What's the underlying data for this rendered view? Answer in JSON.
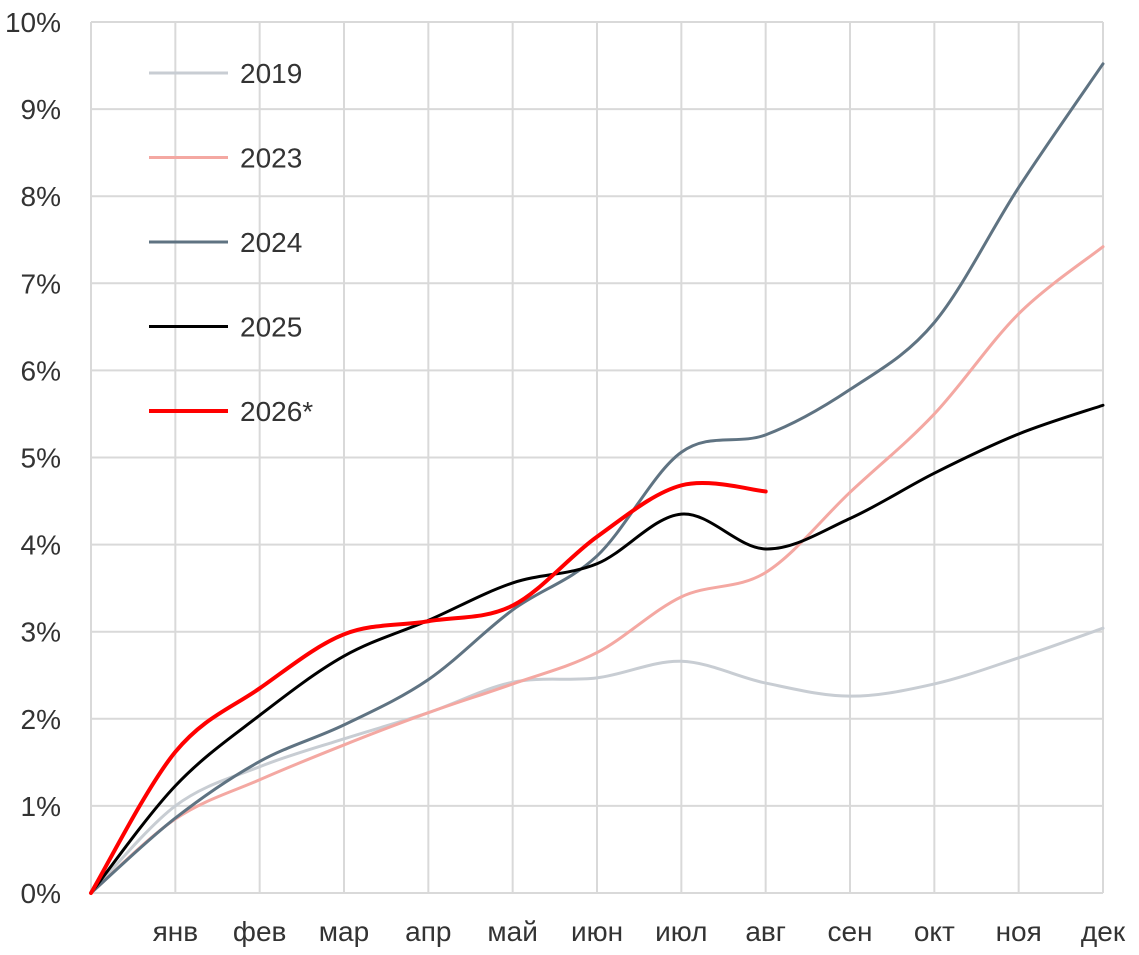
{
  "chart_data": {
    "type": "line",
    "title": "",
    "xlabel": "",
    "ylabel": "",
    "categories": [
      "",
      "янв",
      "фев",
      "мар",
      "апр",
      "май",
      "июн",
      "июл",
      "авг",
      "сен",
      "окт",
      "ноя",
      "дек"
    ],
    "y_ticks": [
      "0%",
      "1%",
      "2%",
      "3%",
      "4%",
      "5%",
      "6%",
      "7%",
      "8%",
      "9%",
      "10%"
    ],
    "ylim": [
      0,
      10
    ],
    "grid": "both",
    "legend_position": "top-left",
    "series": [
      {
        "name": "2019",
        "color": "#c8cdd3",
        "width": 3,
        "values": [
          0,
          1.0,
          1.45,
          1.77,
          2.07,
          2.42,
          2.47,
          2.66,
          2.41,
          2.26,
          2.4,
          2.7,
          3.04
        ]
      },
      {
        "name": "2023",
        "color": "#f4a8a2",
        "width": 3,
        "values": [
          0,
          0.85,
          1.3,
          1.7,
          2.07,
          2.4,
          2.76,
          3.4,
          3.68,
          4.6,
          5.5,
          6.65,
          7.42
        ]
      },
      {
        "name": "2024",
        "color": "#5f7382",
        "width": 3,
        "values": [
          0,
          0.86,
          1.51,
          1.93,
          2.45,
          3.25,
          3.87,
          5.06,
          5.26,
          5.78,
          6.55,
          8.1,
          9.52
        ]
      },
      {
        "name": "2025",
        "color": "#000000",
        "width": 3,
        "values": [
          0,
          1.23,
          2.04,
          2.72,
          3.13,
          3.56,
          3.78,
          4.35,
          3.95,
          4.3,
          4.82,
          5.27,
          5.6
        ]
      },
      {
        "name": "2026*",
        "color": "#ff0000",
        "width": 4,
        "values": [
          0,
          1.62,
          2.35,
          2.97,
          3.12,
          3.3,
          4.09,
          4.68,
          4.61,
          null,
          null,
          null,
          null
        ]
      }
    ]
  }
}
